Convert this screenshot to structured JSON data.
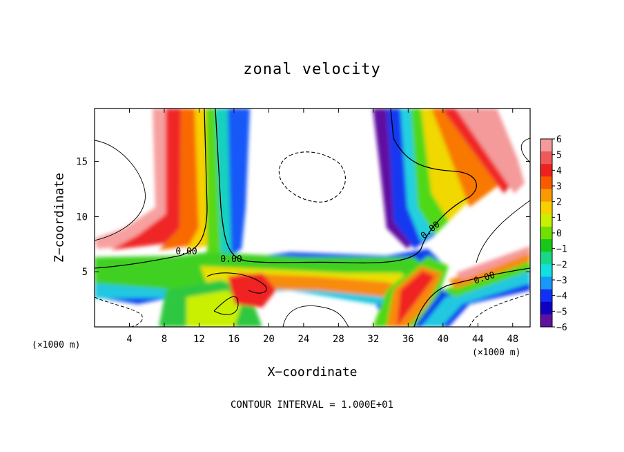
{
  "chart_data": {
    "type": "heatmap",
    "title": "zonal velocity",
    "xlabel": "X−coordinate",
    "ylabel": "Z−coordinate",
    "x_unit_left": "(×1000 m)",
    "x_unit_right": "(×1000 m)",
    "xlim": [
      0,
      50
    ],
    "ylim": [
      0,
      19.8
    ],
    "x_ticks": [
      4,
      8,
      12,
      16,
      20,
      24,
      28,
      32,
      36,
      40,
      44,
      48
    ],
    "y_ticks": [
      5,
      10,
      15
    ],
    "colorbar": {
      "ticks": [
        "6",
        "5",
        "4",
        "3",
        "2",
        "1",
        "0",
        "−1",
        "−2",
        "−3",
        "−4",
        "−5",
        "−6"
      ],
      "range": [
        -6,
        6
      ],
      "colors": [
        "#f49a9a",
        "#ee5a5a",
        "#f02020",
        "#f85a00",
        "#f89a00",
        "#f8d000",
        "#c8f000",
        "#70e000",
        "#18c818",
        "#18d888",
        "#10e0e0",
        "#1898f8",
        "#1030f8",
        "#1000c0",
        "#6010a0"
      ]
    },
    "contour_labels": [
      "0.00",
      "0.00",
      "0.00",
      "0.00"
    ],
    "footer": "CONTOUR INTERVAL = 1.000E+01"
  }
}
